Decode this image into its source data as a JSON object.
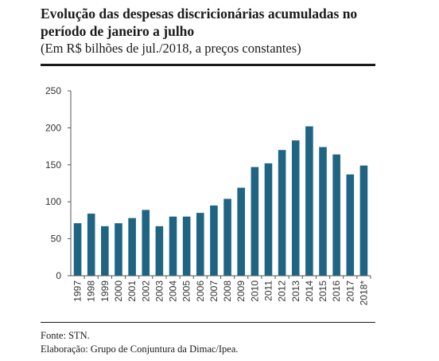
{
  "header": {
    "title": "Evolução das despesas discricionárias acumuladas no período de janeiro a julho",
    "subtitle": "(Em R$ bilhões de jul./2018, a preços constantes)"
  },
  "footer": {
    "source": "Fonte: STN.",
    "credit": "Elaboração: Grupo de Conjuntura da Dimac/Ipea."
  },
  "chart_data": {
    "type": "bar",
    "title": "Evolução das despesas discricionárias acumuladas no período de janeiro a julho",
    "subtitle": "(Em R$ bilhões de jul./2018, a preços constantes)",
    "categories": [
      "1997",
      "1998",
      "1999",
      "2000",
      "2001",
      "2002",
      "2003",
      "2004",
      "2005",
      "2006",
      "2007",
      "2008",
      "2009",
      "2010",
      "2011",
      "2012",
      "2013",
      "2014",
      "2015",
      "2016",
      "2017",
      "2018*"
    ],
    "values": [
      71,
      84,
      67,
      71,
      78,
      89,
      67,
      80,
      80,
      85,
      95,
      104,
      119,
      147,
      152,
      170,
      183,
      202,
      174,
      164,
      137,
      149
    ],
    "ylim": [
      0,
      250
    ],
    "yticks": [
      0,
      50,
      100,
      150,
      200,
      250
    ],
    "xlabel": "",
    "ylabel": "",
    "grid": false,
    "bar_color": "#1f6583"
  }
}
